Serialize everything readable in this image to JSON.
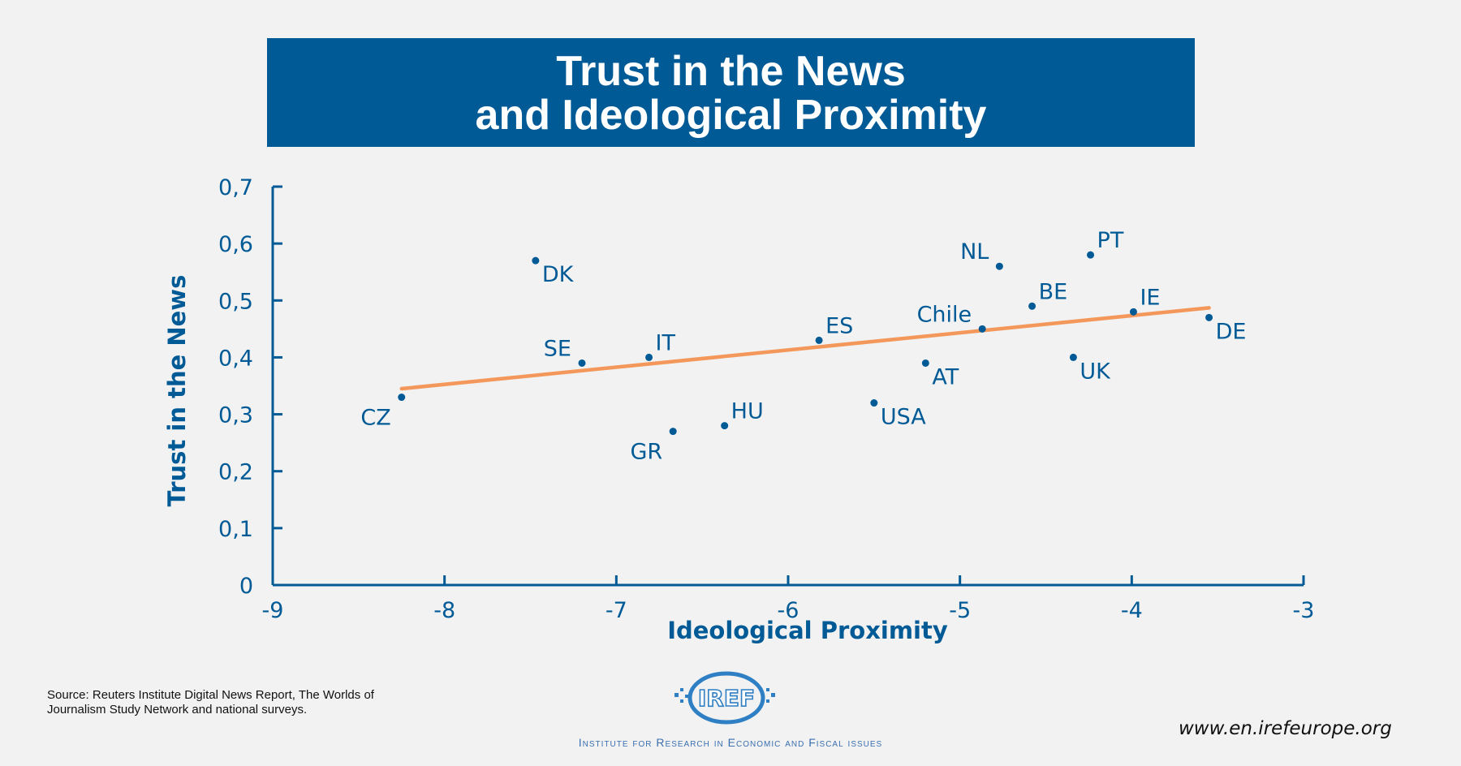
{
  "title_line1": "Trust in the News",
  "title_line2": "and Ideological Proximity",
  "source": "Source: Reuters Institute Digital News Report, The Worlds of Journalism Study Network and national surveys.",
  "website": "www.en.irefeurope.org",
  "logo_text": "IREF",
  "institute": "Institute for Research in Economic and Fiscal issues",
  "colors": {
    "accent": "#005a96",
    "trend": "#f3985a",
    "background": "#f2f2f2"
  },
  "chart_data": {
    "type": "scatter",
    "title": "Trust in the News and Ideological Proximity",
    "xlabel": "Ideological Proximity",
    "ylabel": "Trust in the News",
    "xlim": [
      -9,
      -3
    ],
    "ylim": [
      0,
      0.7
    ],
    "x_ticks": [
      -9,
      -8,
      -7,
      -6,
      -5,
      -4,
      -3
    ],
    "x_tick_labels": [
      "-9",
      "-8",
      "-7",
      "-6",
      "-5",
      "-4",
      "-3"
    ],
    "y_ticks": [
      0,
      0.1,
      0.2,
      0.3,
      0.4,
      0.5,
      0.6,
      0.7
    ],
    "y_tick_labels": [
      "0",
      "0,1",
      "0,2",
      "0,3",
      "0,4",
      "0,5",
      "0,6",
      "0,7"
    ],
    "points": [
      {
        "label": "CZ",
        "x": -8.25,
        "y": 0.33,
        "pos": "bl"
      },
      {
        "label": "DK",
        "x": -7.47,
        "y": 0.57,
        "pos": "br"
      },
      {
        "label": "SE",
        "x": -7.2,
        "y": 0.39,
        "pos": "tl"
      },
      {
        "label": "IT",
        "x": -6.81,
        "y": 0.4,
        "pos": "tr"
      },
      {
        "label": "GR",
        "x": -6.67,
        "y": 0.27,
        "pos": "bl"
      },
      {
        "label": "HU",
        "x": -6.37,
        "y": 0.28,
        "pos": "tr"
      },
      {
        "label": "ES",
        "x": -5.82,
        "y": 0.43,
        "pos": "tr"
      },
      {
        "label": "USA",
        "x": -5.5,
        "y": 0.32,
        "pos": "br"
      },
      {
        "label": "AT",
        "x": -5.2,
        "y": 0.39,
        "pos": "br"
      },
      {
        "label": "Chile",
        "x": -4.87,
        "y": 0.45,
        "pos": "tl"
      },
      {
        "label": "NL",
        "x": -4.77,
        "y": 0.56,
        "pos": "tl"
      },
      {
        "label": "BE",
        "x": -4.58,
        "y": 0.49,
        "pos": "tr"
      },
      {
        "label": "UK",
        "x": -4.34,
        "y": 0.4,
        "pos": "br"
      },
      {
        "label": "PT",
        "x": -4.24,
        "y": 0.58,
        "pos": "tr"
      },
      {
        "label": "IE",
        "x": -3.99,
        "y": 0.48,
        "pos": "tr"
      },
      {
        "label": "DE",
        "x": -3.55,
        "y": 0.47,
        "pos": "br"
      }
    ],
    "trendline": {
      "x": [
        -8.25,
        -3.55
      ],
      "y": [
        0.345,
        0.487
      ]
    },
    "grid": false,
    "legend": "none"
  }
}
